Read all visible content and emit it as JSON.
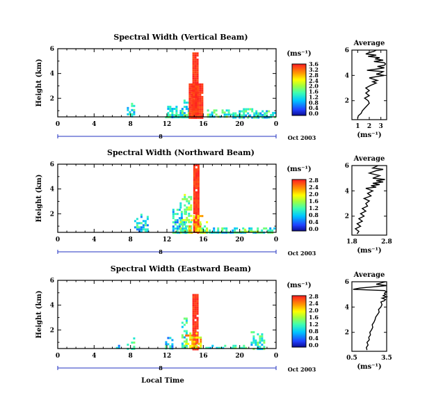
{
  "chart_data": [
    {
      "type": "heatmap",
      "title": "Spectral Width (Vertical Beam)",
      "ylabel": "Height (km)",
      "xlabel": "",
      "xlim": [
        0,
        24
      ],
      "ylim": [
        0.5,
        6
      ],
      "xticks": [
        "0",
        "4",
        "8",
        "12",
        "16",
        "20",
        "0"
      ],
      "yticks": [
        "2",
        "4",
        "6"
      ],
      "date_label": "Oct 2003",
      "date_marker": "8",
      "colorbar": {
        "unit": "(ms⁻¹)",
        "ticks": [
          "0.0",
          "0.4",
          "0.8",
          "1.2",
          "1.6",
          "2.0",
          "2.4",
          "2.8",
          "3.2",
          "3.6"
        ],
        "max": 3.6
      },
      "blobs": [
        {
          "x0": 7.6,
          "x1": 8.4,
          "y0": 0.5,
          "y1": 1.8,
          "level": 0.35
        },
        {
          "x0": 11.8,
          "x1": 13.8,
          "y0": 0.5,
          "y1": 1.4,
          "level": 0.35
        },
        {
          "x0": 13.6,
          "x1": 14.5,
          "y0": 0.5,
          "y1": 1.9,
          "level": 0.4
        },
        {
          "x0": 14.8,
          "x1": 15.4,
          "y0": 0.5,
          "y1": 5.7,
          "level": 0.97
        },
        {
          "x0": 14.4,
          "x1": 15.8,
          "y0": 0.5,
          "y1": 3.2,
          "level": 0.92
        },
        {
          "x0": 16.4,
          "x1": 19.2,
          "y0": 0.5,
          "y1": 1.1,
          "level": 0.45
        },
        {
          "x0": 19.2,
          "x1": 23.2,
          "y0": 0.5,
          "y1": 1.2,
          "level": 0.38
        },
        {
          "x0": 22.4,
          "x1": 23.8,
          "y0": 0.5,
          "y1": 0.9,
          "level": 0.35
        }
      ],
      "profile": {
        "title": "Average",
        "ylabel": "",
        "xlabel": "(ms⁻¹)",
        "xlim": [
          0.5,
          3.5
        ],
        "xticks": [
          "1",
          "2",
          "3"
        ],
        "ylim": [
          0.5,
          6
        ],
        "yticks": [
          "2",
          "4",
          "6"
        ],
        "x": [
          1.0,
          1.05,
          1.3,
          1.4,
          1.6,
          1.8,
          2.0,
          1.9,
          1.6,
          2.0,
          1.7,
          2.0,
          1.7,
          2.1,
          2.6,
          2.3,
          2.7,
          2.0,
          2.6,
          3.3,
          2.6,
          3.0,
          3.2,
          1.8,
          2.6,
          3.3,
          2.7,
          3.3,
          3.4,
          3.3,
          2.4,
          3.2,
          2.5,
          2.9,
          1.9,
          2.6,
          1.7,
          2.0,
          2.4,
          2.6
        ],
        "y": [
          0.6,
          0.8,
          1.0,
          1.2,
          1.4,
          1.6,
          1.8,
          2.0,
          2.2,
          2.4,
          2.6,
          2.8,
          3.0,
          3.2,
          3.4,
          3.5,
          3.6,
          3.8,
          3.9,
          4.0,
          4.1,
          4.2,
          4.3,
          4.4,
          4.5,
          4.6,
          4.7,
          4.8,
          4.9,
          5.0,
          5.1,
          5.2,
          5.3,
          5.4,
          5.5,
          5.6,
          5.7,
          5.8,
          5.9,
          6.0
        ]
      }
    },
    {
      "type": "heatmap",
      "title": "Spectral Width (Northward Beam)",
      "ylabel": "Height (km)",
      "xlabel": "",
      "xlim": [
        0,
        24
      ],
      "ylim": [
        0.5,
        6
      ],
      "xticks": [
        "0",
        "4",
        "8",
        "12",
        "16",
        "20",
        "0"
      ],
      "yticks": [
        "2",
        "4",
        "6"
      ],
      "date_label": "Oct 2003",
      "date_marker": "8",
      "colorbar": {
        "unit": "(ms⁻¹)",
        "ticks": [
          "0.0",
          "0.4",
          "0.8",
          "1.2",
          "1.6",
          "2.0",
          "2.4",
          "2.8"
        ],
        "max": 2.8
      },
      "blobs": [
        {
          "x0": 8.4,
          "x1": 10.0,
          "y0": 0.5,
          "y1": 2.0,
          "level": 0.35
        },
        {
          "x0": 12.6,
          "x1": 14.2,
          "y0": 0.5,
          "y1": 2.4,
          "level": 0.35
        },
        {
          "x0": 13.4,
          "x1": 14.6,
          "y0": 0.5,
          "y1": 3.6,
          "level": 0.5
        },
        {
          "x0": 14.9,
          "x1": 15.4,
          "y0": 0.5,
          "y1": 6.0,
          "level": 0.97
        },
        {
          "x0": 14.4,
          "x1": 16.0,
          "y0": 0.5,
          "y1": 1.9,
          "level": 0.8
        },
        {
          "x0": 15.6,
          "x1": 16.4,
          "y0": 0.5,
          "y1": 1.4,
          "level": 0.6
        },
        {
          "x0": 16.6,
          "x1": 23.8,
          "y0": 0.5,
          "y1": 0.9,
          "level": 0.38
        },
        {
          "x0": 20.0,
          "x1": 22.0,
          "y0": 0.5,
          "y1": 0.8,
          "level": 0.55
        }
      ],
      "profile": {
        "title": "Average",
        "ylabel": "",
        "xlabel": "(ms⁻¹)",
        "xlim": [
          1.8,
          2.8
        ],
        "xticks": [
          "1.8",
          "2.8"
        ],
        "ylim": [
          0.5,
          6
        ],
        "yticks": [
          "2",
          "4",
          "6"
        ],
        "x": [
          1.95,
          2.0,
          1.9,
          2.05,
          1.95,
          2.1,
          2.0,
          2.15,
          2.05,
          2.2,
          2.1,
          2.25,
          2.2,
          2.3,
          2.15,
          2.35,
          2.25,
          2.4,
          2.3,
          2.2,
          2.5,
          2.35,
          2.6,
          2.4,
          2.7,
          2.5,
          2.75,
          2.4,
          2.6,
          2.3,
          2.5,
          2.7,
          2.4,
          2.55
        ],
        "y": [
          0.6,
          0.8,
          1.0,
          1.2,
          1.4,
          1.6,
          1.8,
          2.0,
          2.2,
          2.4,
          2.6,
          2.8,
          3.0,
          3.2,
          3.4,
          3.6,
          3.8,
          4.0,
          4.1,
          4.2,
          4.3,
          4.4,
          4.5,
          4.6,
          4.7,
          4.8,
          4.9,
          5.0,
          5.2,
          5.4,
          5.6,
          5.7,
          5.8,
          6.0
        ]
      }
    },
    {
      "type": "heatmap",
      "title": "Spectral Width (Eastward Beam)",
      "ylabel": "Height (km)",
      "xlabel": "Local Time",
      "xlim": [
        0,
        24
      ],
      "ylim": [
        0.5,
        6
      ],
      "xticks": [
        "0",
        "4",
        "8",
        "12",
        "16",
        "20",
        "0"
      ],
      "yticks": [
        "2",
        "4",
        "6"
      ],
      "date_label": "Oct 2003",
      "date_marker": "8",
      "colorbar": {
        "unit": "(ms⁻¹)",
        "ticks": [
          "0.0",
          "0.4",
          "0.8",
          "1.2",
          "1.6",
          "2.0",
          "2.4",
          "2.8"
        ],
        "max": 2.8
      },
      "blobs": [
        {
          "x0": 6.4,
          "x1": 6.8,
          "y0": 0.5,
          "y1": 0.8,
          "level": 0.35
        },
        {
          "x0": 7.6,
          "x1": 8.4,
          "y0": 0.5,
          "y1": 1.4,
          "level": 0.4
        },
        {
          "x0": 11.8,
          "x1": 12.6,
          "y0": 0.5,
          "y1": 1.6,
          "level": 0.35
        },
        {
          "x0": 13.6,
          "x1": 14.2,
          "y0": 0.5,
          "y1": 3.0,
          "level": 0.4
        },
        {
          "x0": 14.8,
          "x1": 15.4,
          "y0": 0.5,
          "y1": 4.9,
          "level": 0.97
        },
        {
          "x0": 14.0,
          "x1": 15.8,
          "y0": 0.5,
          "y1": 1.8,
          "level": 0.75
        },
        {
          "x0": 16.0,
          "x1": 20.8,
          "y0": 0.5,
          "y1": 0.8,
          "level": 0.4
        },
        {
          "x0": 21.2,
          "x1": 22.6,
          "y0": 0.5,
          "y1": 1.9,
          "level": 0.4
        }
      ],
      "profile": {
        "title": "Average",
        "ylabel": "",
        "xlabel": "(ms⁻¹)",
        "xlim": [
          0.5,
          3.5
        ],
        "xticks": [
          "0.5",
          "3.5"
        ],
        "ylim": [
          0.5,
          6
        ],
        "yticks": [
          "2",
          "4",
          "6"
        ],
        "x": [
          1.8,
          1.75,
          1.9,
          1.8,
          2.0,
          1.95,
          2.1,
          2.05,
          2.2,
          2.3,
          2.25,
          2.4,
          2.5,
          2.55,
          2.7,
          2.85,
          2.8,
          3.0,
          3.1,
          3.0,
          3.3,
          3.4,
          3.1,
          3.5,
          3.2,
          3.4,
          3.3,
          3.5,
          3.3,
          0.6,
          1.2,
          2.4,
          3.5,
          2.6,
          3.4
        ],
        "y": [
          0.6,
          0.8,
          1.0,
          1.2,
          1.4,
          1.6,
          1.8,
          2.0,
          2.2,
          2.4,
          2.6,
          2.8,
          3.0,
          3.2,
          3.4,
          3.6,
          3.8,
          4.0,
          4.2,
          4.4,
          4.5,
          4.6,
          4.7,
          4.8,
          4.9,
          5.0,
          5.1,
          5.2,
          5.3,
          5.4,
          5.5,
          5.6,
          5.7,
          5.8,
          6.0
        ]
      }
    }
  ]
}
